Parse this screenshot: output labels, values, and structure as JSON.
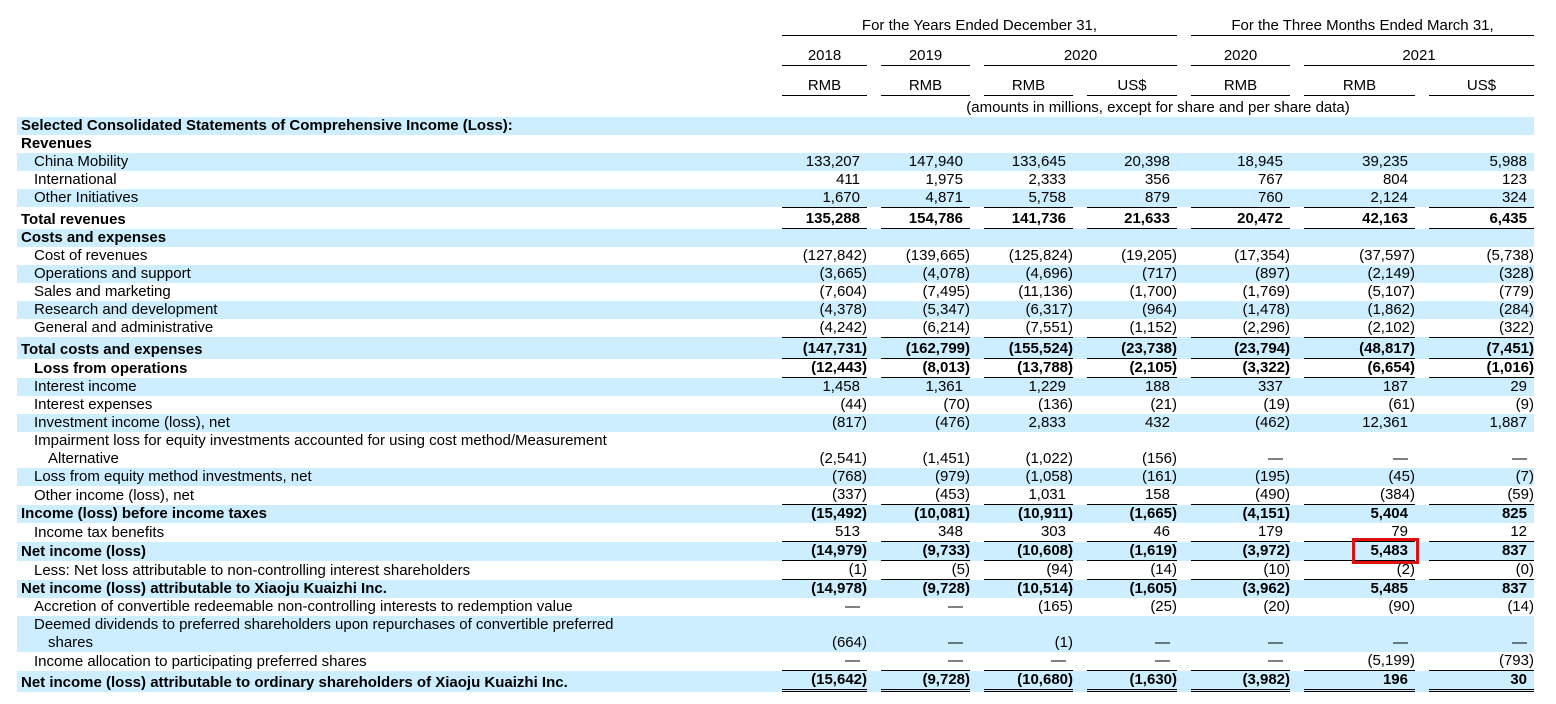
{
  "colors": {
    "background": "#ffffff",
    "text": "#000000",
    "row_shade": "#cceeff",
    "rule": "#000000",
    "highlight_box": "#e01010"
  },
  "table": {
    "header": {
      "groups": [
        {
          "label": "For the Years Ended December 31,",
          "span": 4
        },
        {
          "label": "For the Three Months Ended March 31,",
          "span": 3
        }
      ],
      "years": [
        {
          "label": "2018",
          "span": 1
        },
        {
          "label": "2019",
          "span": 1
        },
        {
          "label": "2020",
          "span": 2
        },
        {
          "label": "2020",
          "span": 1
        },
        {
          "label": "2021",
          "span": 2
        }
      ],
      "currencies": [
        "RMB",
        "RMB",
        "RMB",
        "US$",
        "RMB",
        "RMB",
        "US$"
      ],
      "units_note": "(amounts in millions, except for share and per share data)"
    },
    "annotation": {
      "type": "red-box",
      "row_label": "Net income (loss)",
      "column": "2021 RMB",
      "value": "5,483"
    },
    "rows": [
      {
        "label": "Selected Consolidated Statements of Comprehensive Income (Loss):",
        "bold": true,
        "indent": 0,
        "shaded": true,
        "values": []
      },
      {
        "label": "Revenues",
        "bold": true,
        "indent": 0,
        "shaded": false,
        "values": []
      },
      {
        "label": "China Mobility",
        "indent": 1,
        "shaded": true,
        "values": [
          "133,207",
          "147,940",
          "133,645",
          "20,398",
          "18,945",
          "39,235",
          "5,988"
        ]
      },
      {
        "label": "International",
        "indent": 1,
        "shaded": false,
        "values": [
          "411",
          "1,975",
          "2,333",
          "356",
          "767",
          "804",
          "123"
        ]
      },
      {
        "label": "Other Initiatives",
        "indent": 1,
        "shaded": true,
        "values": [
          "1,670",
          "4,871",
          "5,758",
          "879",
          "760",
          "2,124",
          "324"
        ]
      },
      {
        "label": "Total revenues",
        "bold": true,
        "indent": 0,
        "shaded": false,
        "line_above": true,
        "line_below": true,
        "values": [
          "135,288",
          "154,786",
          "141,736",
          "21,633",
          "20,472",
          "42,163",
          "6,435"
        ]
      },
      {
        "label": "Costs and expenses",
        "bold": true,
        "indent": 0,
        "shaded": true,
        "values": []
      },
      {
        "label": "Cost of revenues",
        "indent": 1,
        "shaded": false,
        "values": [
          "(127,842)",
          "(139,665)",
          "(125,824)",
          "(19,205)",
          "(17,354)",
          "(37,597)",
          "(5,738)"
        ]
      },
      {
        "label": "Operations and support",
        "indent": 1,
        "shaded": true,
        "values": [
          "(3,665)",
          "(4,078)",
          "(4,696)",
          "(717)",
          "(897)",
          "(2,149)",
          "(328)"
        ]
      },
      {
        "label": "Sales and marketing",
        "indent": 1,
        "shaded": false,
        "values": [
          "(7,604)",
          "(7,495)",
          "(11,136)",
          "(1,700)",
          "(1,769)",
          "(5,107)",
          "(779)"
        ]
      },
      {
        "label": "Research and development",
        "indent": 1,
        "shaded": true,
        "values": [
          "(4,378)",
          "(5,347)",
          "(6,317)",
          "(964)",
          "(1,478)",
          "(1,862)",
          "(284)"
        ]
      },
      {
        "label": "General and administrative",
        "indent": 1,
        "shaded": false,
        "values": [
          "(4,242)",
          "(6,214)",
          "(7,551)",
          "(1,152)",
          "(2,296)",
          "(2,102)",
          "(322)"
        ]
      },
      {
        "label": "Total costs and expenses",
        "bold": true,
        "indent": 0,
        "shaded": true,
        "line_above": true,
        "line_below": true,
        "values": [
          "(147,731)",
          "(162,799)",
          "(155,524)",
          "(23,738)",
          "(23,794)",
          "(48,817)",
          "(7,451)"
        ]
      },
      {
        "label": "Loss from operations",
        "bold": true,
        "indent": 1,
        "shaded": false,
        "line_below": true,
        "values": [
          "(12,443)",
          "(8,013)",
          "(13,788)",
          "(2,105)",
          "(3,322)",
          "(6,654)",
          "(1,016)"
        ]
      },
      {
        "label": "Interest income",
        "indent": 1,
        "shaded": true,
        "values": [
          "1,458",
          "1,361",
          "1,229",
          "188",
          "337",
          "187",
          "29"
        ]
      },
      {
        "label": "Interest expenses",
        "indent": 1,
        "shaded": false,
        "values": [
          "(44)",
          "(70)",
          "(136)",
          "(21)",
          "(19)",
          "(61)",
          "(9)"
        ]
      },
      {
        "label": "Investment income (loss), net",
        "indent": 1,
        "shaded": true,
        "values": [
          "(817)",
          "(476)",
          "2,833",
          "432",
          "(462)",
          "12,361",
          "1,887"
        ]
      },
      {
        "label": "Impairment loss for equity investments accounted for using cost method/Measurement",
        "label2": "Alternative",
        "indent": 1,
        "shaded": false,
        "values": [
          "(2,541)",
          "(1,451)",
          "(1,022)",
          "(156)",
          "—",
          "—",
          "—"
        ]
      },
      {
        "label": "Loss from equity method investments, net",
        "indent": 1,
        "shaded": true,
        "values": [
          "(768)",
          "(979)",
          "(1,058)",
          "(161)",
          "(195)",
          "(45)",
          "(7)"
        ]
      },
      {
        "label": "Other income (loss), net",
        "indent": 1,
        "shaded": false,
        "line_below": true,
        "values": [
          "(337)",
          "(453)",
          "1,031",
          "158",
          "(490)",
          "(384)",
          "(59)"
        ]
      },
      {
        "label": "Income (loss) before income taxes",
        "bold": true,
        "indent": 0,
        "shaded": true,
        "values": [
          "(15,492)",
          "(10,081)",
          "(10,911)",
          "(1,665)",
          "(4,151)",
          "5,404",
          "825"
        ]
      },
      {
        "label": "Income tax benefits",
        "indent": 1,
        "shaded": false,
        "line_below": true,
        "values": [
          "513",
          "348",
          "303",
          "46",
          "179",
          "79",
          "12"
        ]
      },
      {
        "label": "Net income (loss)",
        "bold": true,
        "indent": 0,
        "shaded": true,
        "line_below": true,
        "red_box_col": 5,
        "values": [
          "(14,979)",
          "(9,733)",
          "(10,608)",
          "(1,619)",
          "(3,972)",
          "5,483",
          "837"
        ]
      },
      {
        "label": "Less: Net loss attributable to non-controlling interest shareholders",
        "indent": 1,
        "shaded": false,
        "line_below": true,
        "values": [
          "(1)",
          "(5)",
          "(94)",
          "(14)",
          "(10)",
          "(2)",
          "(0)"
        ]
      },
      {
        "label": "Net income (loss) attributable to Xiaoju Kuaizhi Inc.",
        "bold": true,
        "indent": 0,
        "shaded": true,
        "values": [
          "(14,978)",
          "(9,728)",
          "(10,514)",
          "(1,605)",
          "(3,962)",
          "5,485",
          "837"
        ]
      },
      {
        "label": "Accretion of convertible redeemable non-controlling interests to redemption value",
        "indent": 1,
        "shaded": false,
        "values": [
          "—",
          "—",
          "(165)",
          "(25)",
          "(20)",
          "(90)",
          "(14)"
        ]
      },
      {
        "label": "Deemed dividends to preferred shareholders upon repurchases of convertible preferred",
        "label2": "shares",
        "indent": 1,
        "shaded": true,
        "values": [
          "(664)",
          "—",
          "(1)",
          "—",
          "—",
          "—",
          "—"
        ]
      },
      {
        "label": "Income allocation to participating preferred shares",
        "indent": 1,
        "shaded": false,
        "line_below": true,
        "values": [
          "—",
          "—",
          "—",
          "—",
          "—",
          "(5,199)",
          "(793)"
        ]
      },
      {
        "label": "Net income (loss) attributable to ordinary shareholders of Xiaoju Kuaizhi Inc.",
        "bold": true,
        "indent": 0,
        "shaded": true,
        "double_below": true,
        "values": [
          "(15,642)",
          "(9,728)",
          "(10,680)",
          "(1,630)",
          "(3,982)",
          "196",
          "30"
        ]
      }
    ]
  }
}
